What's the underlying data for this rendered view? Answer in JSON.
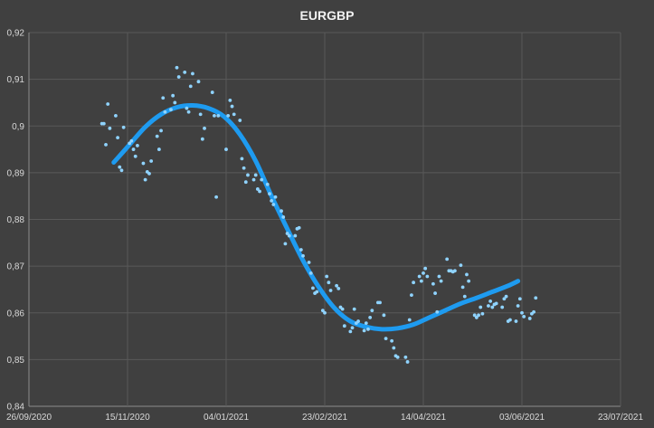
{
  "chart_data": {
    "type": "scatter",
    "title": "EURGBP",
    "xlabel": "",
    "ylabel": "",
    "grid": true,
    "legend": "none",
    "xlim": [
      "2020-09-26",
      "2021-07-23"
    ],
    "ylim": [
      0.84,
      0.92
    ],
    "x_tick_labels": [
      "26/09/2020",
      "15/11/2020",
      "04/01/2021",
      "23/02/2021",
      "14/04/2021",
      "03/06/2021",
      "23/07/2021"
    ],
    "y_tick_labels": [
      "0,84",
      "0,85",
      "0,86",
      "0,87",
      "0,88",
      "0,89",
      "0,9",
      "0,91",
      "0,92"
    ],
    "colors": {
      "background": "#404040",
      "grid": "#595959",
      "points": "#8fd3ff",
      "trend": "#1e9bf0"
    },
    "series": [
      {
        "type": "scatter",
        "points": [
          [
            "2020-11-02",
            0.9005
          ],
          [
            "2020-11-03",
            0.9005
          ],
          [
            "2020-11-04",
            0.896
          ],
          [
            "2020-11-05",
            0.9047
          ],
          [
            "2020-11-06",
            0.8995
          ],
          [
            "2020-11-09",
            0.9022
          ],
          [
            "2020-11-10",
            0.8975
          ],
          [
            "2020-11-11",
            0.8912
          ],
          [
            "2020-11-12",
            0.8905
          ],
          [
            "2020-11-13",
            0.8997
          ],
          [
            "2020-11-16",
            0.8963
          ],
          [
            "2020-11-17",
            0.8968
          ],
          [
            "2020-11-18",
            0.895
          ],
          [
            "2020-11-19",
            0.8935
          ],
          [
            "2020-11-20",
            0.8958
          ],
          [
            "2020-11-23",
            0.892
          ],
          [
            "2020-11-24",
            0.8885
          ],
          [
            "2020-11-25",
            0.8902
          ],
          [
            "2020-11-26",
            0.8898
          ],
          [
            "2020-11-27",
            0.8925
          ],
          [
            "2020-11-30",
            0.8978
          ],
          [
            "2020-12-01",
            0.895
          ],
          [
            "2020-12-02",
            0.899
          ],
          [
            "2020-12-03",
            0.906
          ],
          [
            "2020-12-04",
            0.903
          ],
          [
            "2020-12-07",
            0.9035
          ],
          [
            "2020-12-08",
            0.9065
          ],
          [
            "2020-12-09",
            0.905
          ],
          [
            "2020-12-10",
            0.9125
          ],
          [
            "2020-12-11",
            0.9105
          ],
          [
            "2020-12-14",
            0.9115
          ],
          [
            "2020-12-15",
            0.9038
          ],
          [
            "2020-12-16",
            0.903
          ],
          [
            "2020-12-17",
            0.9085
          ],
          [
            "2020-12-18",
            0.9112
          ],
          [
            "2020-12-21",
            0.9095
          ],
          [
            "2020-12-22",
            0.9025
          ],
          [
            "2020-12-23",
            0.8972
          ],
          [
            "2020-12-24",
            0.8995
          ],
          [
            "2020-12-28",
            0.9072
          ],
          [
            "2020-12-29",
            0.9022
          ],
          [
            "2020-12-30",
            0.8848
          ],
          [
            "2020-12-31",
            0.9022
          ],
          [
            "2021-01-04",
            0.895
          ],
          [
            "2021-01-05",
            0.9022
          ],
          [
            "2021-01-06",
            0.9055
          ],
          [
            "2021-01-07",
            0.9042
          ],
          [
            "2021-01-08",
            0.9025
          ],
          [
            "2021-01-11",
            0.9012
          ],
          [
            "2021-01-12",
            0.893
          ],
          [
            "2021-01-13",
            0.891
          ],
          [
            "2021-01-14",
            0.888
          ],
          [
            "2021-01-15",
            0.8895
          ],
          [
            "2021-01-18",
            0.8885
          ],
          [
            "2021-01-19",
            0.8895
          ],
          [
            "2021-01-20",
            0.8865
          ],
          [
            "2021-01-21",
            0.886
          ],
          [
            "2021-01-22",
            0.8885
          ],
          [
            "2021-01-25",
            0.8875
          ],
          [
            "2021-01-26",
            0.8855
          ],
          [
            "2021-01-27",
            0.884
          ],
          [
            "2021-01-28",
            0.8832
          ],
          [
            "2021-01-29",
            0.8848
          ],
          [
            "2021-02-01",
            0.8818
          ],
          [
            "2021-02-02",
            0.8805
          ],
          [
            "2021-02-03",
            0.8748
          ],
          [
            "2021-02-04",
            0.877
          ],
          [
            "2021-02-05",
            0.8765
          ],
          [
            "2021-02-08",
            0.8765
          ],
          [
            "2021-02-09",
            0.878
          ],
          [
            "2021-02-10",
            0.8782
          ],
          [
            "2021-02-11",
            0.8735
          ],
          [
            "2021-02-12",
            0.8722
          ],
          [
            "2021-02-15",
            0.8708
          ],
          [
            "2021-02-16",
            0.8685
          ],
          [
            "2021-02-17",
            0.8653
          ],
          [
            "2021-02-18",
            0.8642
          ],
          [
            "2021-02-19",
            0.8645
          ],
          [
            "2021-02-22",
            0.8605
          ],
          [
            "2021-02-23",
            0.86
          ],
          [
            "2021-02-24",
            0.8678
          ],
          [
            "2021-02-25",
            0.8665
          ],
          [
            "2021-02-26",
            0.8648
          ],
          [
            "2021-03-01",
            0.8658
          ],
          [
            "2021-03-02",
            0.8652
          ],
          [
            "2021-03-03",
            0.8612
          ],
          [
            "2021-03-04",
            0.8608
          ],
          [
            "2021-03-05",
            0.8572
          ],
          [
            "2021-03-08",
            0.856
          ],
          [
            "2021-03-09",
            0.8568
          ],
          [
            "2021-03-10",
            0.8608
          ],
          [
            "2021-03-11",
            0.8578
          ],
          [
            "2021-03-12",
            0.8582
          ],
          [
            "2021-03-15",
            0.8562
          ],
          [
            "2021-03-16",
            0.8578
          ],
          [
            "2021-03-17",
            0.8565
          ],
          [
            "2021-03-18",
            0.859
          ],
          [
            "2021-03-19",
            0.8605
          ],
          [
            "2021-03-22",
            0.8622
          ],
          [
            "2021-03-23",
            0.8622
          ],
          [
            "2021-03-25",
            0.8595
          ],
          [
            "2021-03-26",
            0.8545
          ],
          [
            "2021-03-29",
            0.854
          ],
          [
            "2021-03-30",
            0.8525
          ],
          [
            "2021-03-31",
            0.8508
          ],
          [
            "2021-04-01",
            0.8505
          ],
          [
            "2021-04-05",
            0.8505
          ],
          [
            "2021-04-06",
            0.8495
          ],
          [
            "2021-04-07",
            0.8585
          ],
          [
            "2021-04-08",
            0.8638
          ],
          [
            "2021-04-09",
            0.8665
          ],
          [
            "2021-04-12",
            0.8678
          ],
          [
            "2021-04-13",
            0.8668
          ],
          [
            "2021-04-14",
            0.8685
          ],
          [
            "2021-04-15",
            0.8695
          ],
          [
            "2021-04-16",
            0.8678
          ],
          [
            "2021-04-19",
            0.8662
          ],
          [
            "2021-04-20",
            0.8642
          ],
          [
            "2021-04-21",
            0.8602
          ],
          [
            "2021-04-22",
            0.8678
          ],
          [
            "2021-04-23",
            0.8668
          ],
          [
            "2021-04-26",
            0.8715
          ],
          [
            "2021-04-27",
            0.869
          ],
          [
            "2021-04-28",
            0.869
          ],
          [
            "2021-04-29",
            0.8688
          ],
          [
            "2021-04-30",
            0.869
          ],
          [
            "2021-05-03",
            0.8702
          ],
          [
            "2021-05-04",
            0.8655
          ],
          [
            "2021-05-05",
            0.8635
          ],
          [
            "2021-05-06",
            0.8682
          ],
          [
            "2021-05-07",
            0.8668
          ],
          [
            "2021-05-10",
            0.8595
          ],
          [
            "2021-05-11",
            0.859
          ],
          [
            "2021-05-12",
            0.8595
          ],
          [
            "2021-05-13",
            0.8612
          ],
          [
            "2021-05-14",
            0.8598
          ],
          [
            "2021-05-17",
            0.8615
          ],
          [
            "2021-05-18",
            0.8625
          ],
          [
            "2021-05-19",
            0.8612
          ],
          [
            "2021-05-20",
            0.8618
          ],
          [
            "2021-05-21",
            0.862
          ],
          [
            "2021-05-24",
            0.8612
          ],
          [
            "2021-05-25",
            0.863
          ],
          [
            "2021-05-26",
            0.8635
          ],
          [
            "2021-05-27",
            0.8582
          ],
          [
            "2021-05-28",
            0.8585
          ],
          [
            "2021-05-31",
            0.8582
          ],
          [
            "2021-06-01",
            0.8615
          ],
          [
            "2021-06-02",
            0.863
          ],
          [
            "2021-06-03",
            0.86
          ],
          [
            "2021-06-04",
            0.8592
          ],
          [
            "2021-06-07",
            0.8588
          ],
          [
            "2021-06-08",
            0.8598
          ],
          [
            "2021-06-09",
            0.8602
          ],
          [
            "2021-06-10",
            0.8632
          ]
        ]
      },
      {
        "type": "line",
        "points": [
          [
            "2020-11-08",
            0.8922
          ],
          [
            "2020-11-16",
            0.896
          ],
          [
            "2020-11-24",
            0.8998
          ],
          [
            "2020-12-02",
            0.9025
          ],
          [
            "2020-12-10",
            0.904
          ],
          [
            "2020-12-18",
            0.9044
          ],
          [
            "2020-12-26",
            0.9038
          ],
          [
            "2021-01-03",
            0.902
          ],
          [
            "2021-01-11",
            0.8982
          ],
          [
            "2021-01-19",
            0.8925
          ],
          [
            "2021-01-27",
            0.885
          ],
          [
            "2021-02-04",
            0.878
          ],
          [
            "2021-02-12",
            0.8712
          ],
          [
            "2021-02-20",
            0.8655
          ],
          [
            "2021-02-28",
            0.861
          ],
          [
            "2021-03-08",
            0.8582
          ],
          [
            "2021-03-16",
            0.857
          ],
          [
            "2021-03-24",
            0.8565
          ],
          [
            "2021-04-01",
            0.8567
          ],
          [
            "2021-04-09",
            0.8575
          ],
          [
            "2021-04-17",
            0.859
          ],
          [
            "2021-04-25",
            0.8605
          ],
          [
            "2021-05-03",
            0.862
          ],
          [
            "2021-05-11",
            0.8632
          ],
          [
            "2021-05-19",
            0.8645
          ],
          [
            "2021-05-27",
            0.8658
          ],
          [
            "2021-06-01",
            0.8668
          ]
        ]
      }
    ]
  }
}
